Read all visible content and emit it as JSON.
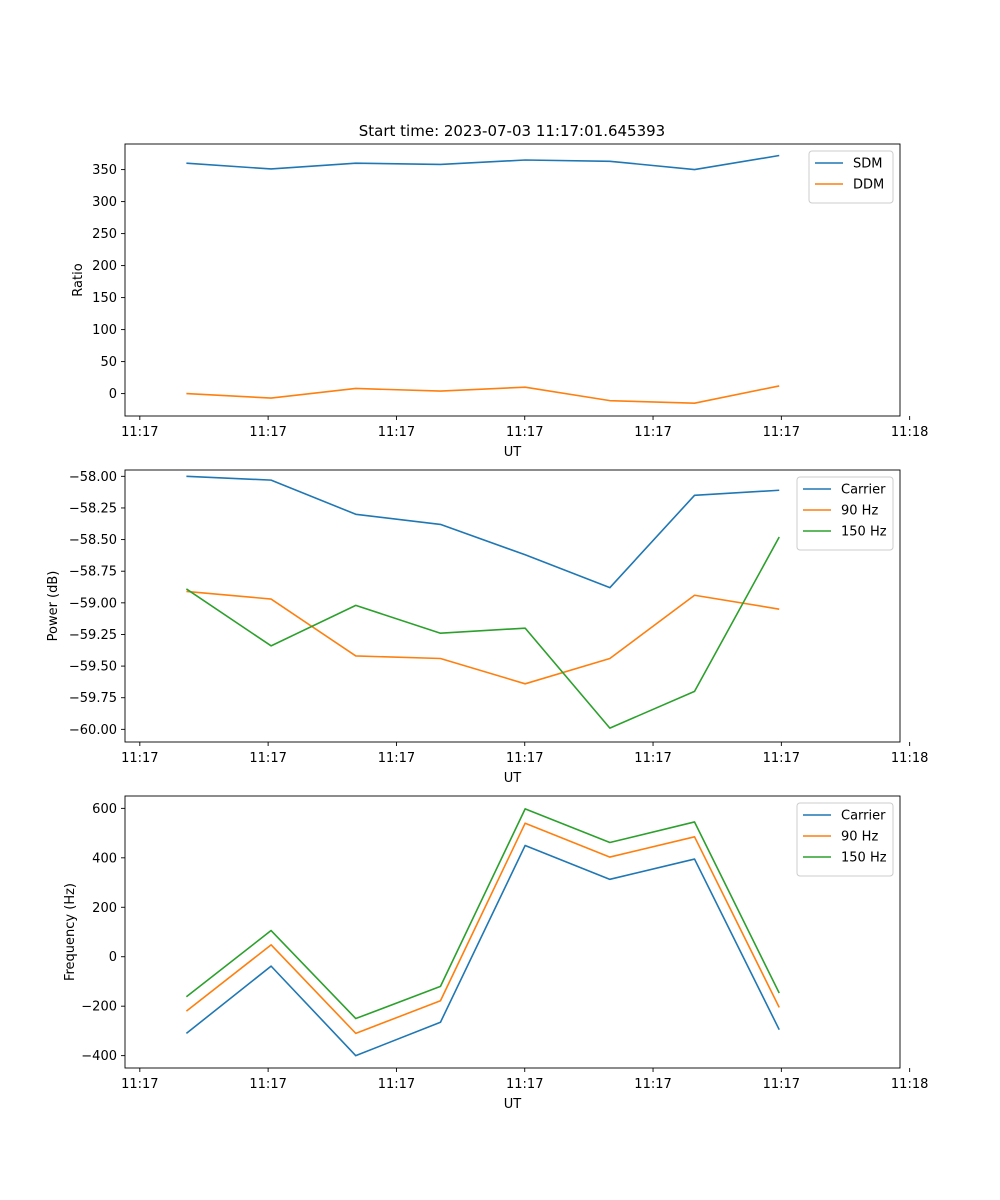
{
  "figure_title": "Start time: 2023-07-03 11:17:01.645393",
  "colors": {
    "blue": "#1f77b4",
    "orange": "#ff7f0e",
    "green": "#2ca02c"
  },
  "chart_data": [
    {
      "type": "line",
      "title": "Start time: 2023-07-03 11:17:01.645393",
      "xlabel": "UT",
      "ylabel": "Ratio",
      "x": [
        1,
        2,
        3,
        4,
        5,
        6,
        7,
        8
      ],
      "xlim": [
        0.275,
        9.426
      ],
      "x_ticks": [
        0.45,
        1.965,
        3.48,
        4.995,
        6.51,
        8.025,
        9.54
      ],
      "x_tick_labels": [
        "11:17",
        "11:17",
        "11:17",
        "11:17",
        "11:17",
        "11:17",
        "11:18"
      ],
      "ylim": [
        -35,
        390
      ],
      "y_ticks": [
        0,
        50,
        100,
        150,
        200,
        250,
        300,
        350
      ],
      "y_tick_labels": [
        "0",
        "50",
        "100",
        "150",
        "200",
        "250",
        "300",
        "350"
      ],
      "legend_position": "top-right",
      "series": [
        {
          "name": "SDM",
          "color": "#1f77b4",
          "values": [
            360,
            351,
            360,
            358,
            365,
            363,
            350,
            372
          ]
        },
        {
          "name": "DDM",
          "color": "#ff7f0e",
          "values": [
            0,
            -7,
            8,
            4,
            10,
            -11,
            -15,
            12
          ]
        }
      ]
    },
    {
      "type": "line",
      "title": "",
      "xlabel": "UT",
      "ylabel": "Power (dB)",
      "x": [
        1,
        2,
        3,
        4,
        5,
        6,
        7,
        8
      ],
      "xlim": [
        0.275,
        9.426
      ],
      "x_ticks": [
        0.45,
        1.965,
        3.48,
        4.995,
        6.51,
        8.025,
        9.54
      ],
      "x_tick_labels": [
        "11:17",
        "11:17",
        "11:17",
        "11:17",
        "11:17",
        "11:17",
        "11:18"
      ],
      "ylim": [
        -60.1,
        -57.95
      ],
      "y_ticks": [
        -60.0,
        -59.75,
        -59.5,
        -59.25,
        -59.0,
        -58.75,
        -58.5,
        -58.25,
        -58.0
      ],
      "y_tick_labels": [
        "−60.00",
        "−59.75",
        "−59.50",
        "−59.25",
        "−59.00",
        "−58.75",
        "−58.50",
        "−58.25",
        "−58.00"
      ],
      "legend_position": "top-right",
      "series": [
        {
          "name": "Carrier",
          "color": "#1f77b4",
          "values": [
            -58.0,
            -58.03,
            -58.3,
            -58.38,
            -58.62,
            -58.88,
            -58.15,
            -58.11
          ]
        },
        {
          "name": "90 Hz",
          "color": "#ff7f0e",
          "values": [
            -58.91,
            -58.97,
            -59.42,
            -59.44,
            -59.64,
            -59.44,
            -58.94,
            -59.05
          ]
        },
        {
          "name": "150 Hz",
          "color": "#2ca02c",
          "values": [
            -58.89,
            -59.34,
            -59.02,
            -59.24,
            -59.2,
            -59.99,
            -59.7,
            -58.48
          ]
        }
      ]
    },
    {
      "type": "line",
      "title": "",
      "xlabel": "UT",
      "ylabel": "Frequency (Hz)",
      "x": [
        1,
        2,
        3,
        4,
        5,
        6,
        7,
        8
      ],
      "xlim": [
        0.275,
        9.426
      ],
      "x_ticks": [
        0.45,
        1.965,
        3.48,
        4.995,
        6.51,
        8.025,
        9.54
      ],
      "x_tick_labels": [
        "11:17",
        "11:17",
        "11:17",
        "11:17",
        "11:17",
        "11:17",
        "11:18"
      ],
      "ylim": [
        -450,
        650
      ],
      "y_ticks": [
        -400,
        -200,
        0,
        200,
        400,
        600
      ],
      "y_tick_labels": [
        "−400",
        "−200",
        "0",
        "200",
        "400",
        "600"
      ],
      "legend_position": "top-right",
      "series": [
        {
          "name": "Carrier",
          "color": "#1f77b4",
          "values": [
            -310,
            -38,
            -400,
            -265,
            450,
            313,
            395,
            -295
          ]
        },
        {
          "name": "90 Hz",
          "color": "#ff7f0e",
          "values": [
            -220,
            48,
            -310,
            -178,
            540,
            403,
            485,
            -205
          ]
        },
        {
          "name": "150 Hz",
          "color": "#2ca02c",
          "values": [
            -162,
            106,
            -250,
            -120,
            598,
            462,
            545,
            -147
          ]
        }
      ]
    }
  ]
}
